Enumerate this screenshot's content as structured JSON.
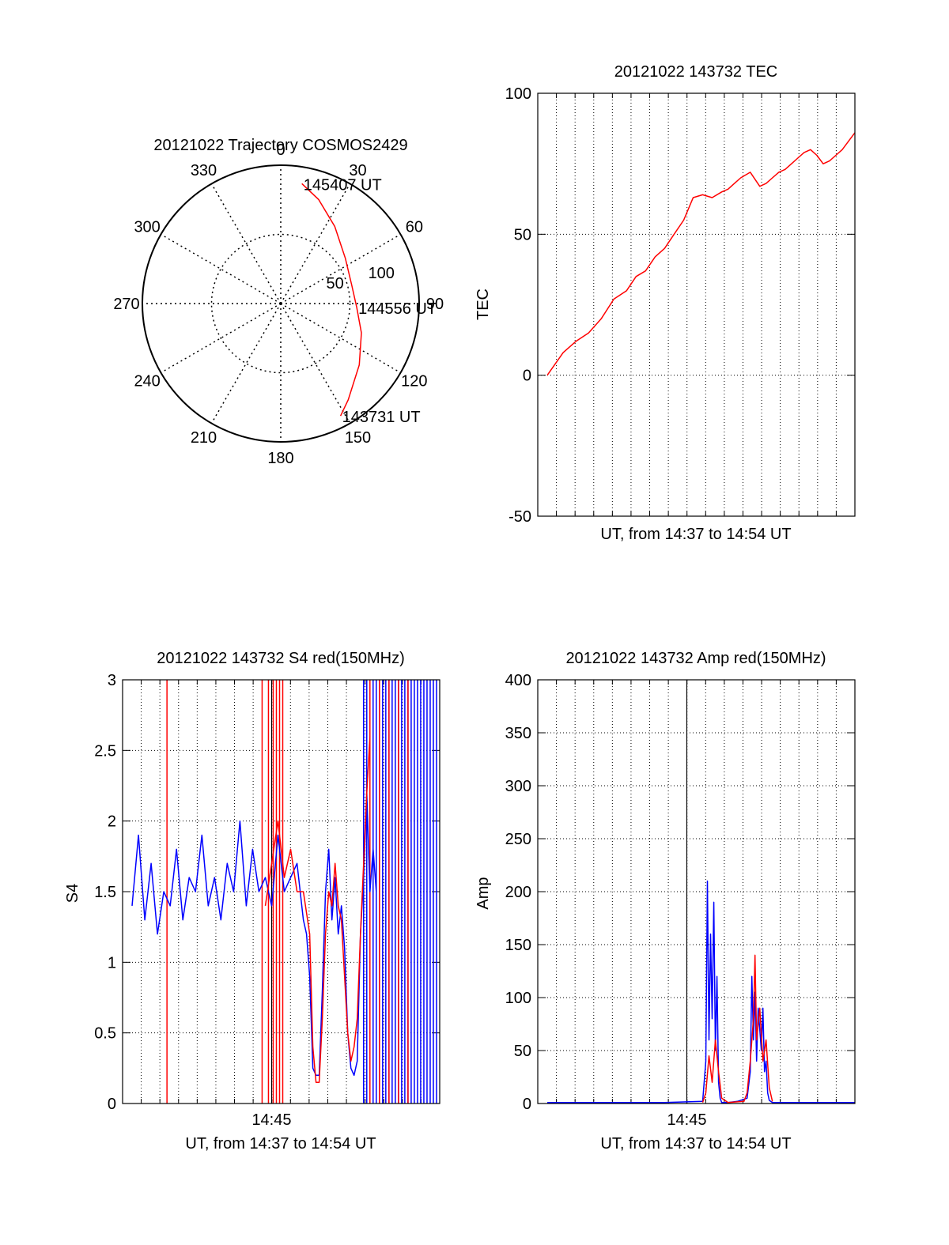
{
  "chart_data": [
    {
      "id": "polar",
      "type": "polar-trajectory",
      "title": "20121022 Trajectory COSMOS2429",
      "azimuth_labels": [
        "0",
        "30",
        "60",
        "90",
        "120",
        "150",
        "180",
        "210",
        "240",
        "270",
        "300",
        "330"
      ],
      "radius_labels": [
        "50",
        "100"
      ],
      "radius_max": 100,
      "track": {
        "color": "#ff0000",
        "points": [
          {
            "az": 10,
            "r": 88
          },
          {
            "az": 20,
            "r": 80
          },
          {
            "az": 35,
            "r": 68
          },
          {
            "az": 55,
            "r": 57
          },
          {
            "az": 75,
            "r": 53
          },
          {
            "az": 93,
            "r": 55
          },
          {
            "az": 110,
            "r": 62
          },
          {
            "az": 128,
            "r": 72
          },
          {
            "az": 145,
            "r": 85
          },
          {
            "az": 152,
            "r": 92
          }
        ]
      },
      "annotations": [
        {
          "text": "145407 UT",
          "az": 10,
          "r": 88
        },
        {
          "text": "144556 UT",
          "az": 93,
          "r": 55
        },
        {
          "text": "143731 UT",
          "az": 152,
          "r": 92
        }
      ]
    },
    {
      "id": "tec",
      "type": "line",
      "title": "20121022 143732 TEC",
      "xlabel": "UT, from 14:37 to 14:54 UT",
      "ylabel": "TEC",
      "xlim": [
        0,
        100
      ],
      "ylim": [
        -50,
        100
      ],
      "yticks": [
        "-50",
        "0",
        "50",
        "100"
      ],
      "grid": true,
      "series": [
        {
          "color": "#ff0000",
          "x": [
            3,
            8,
            12,
            16,
            20,
            24,
            28,
            31,
            34,
            37,
            40,
            43,
            46,
            49,
            52,
            55,
            58,
            60,
            62,
            64,
            67,
            70,
            72,
            74,
            76,
            78,
            80,
            82,
            84,
            86,
            88,
            90,
            92,
            94,
            96,
            98,
            100
          ],
          "y": [
            0,
            8,
            12,
            15,
            20,
            27,
            30,
            35,
            37,
            42,
            45,
            50,
            55,
            63,
            64,
            63,
            65,
            66,
            68,
            70,
            72,
            67,
            68,
            70,
            72,
            73,
            75,
            77,
            79,
            80,
            78,
            75,
            76,
            78,
            80,
            83,
            86
          ]
        }
      ]
    },
    {
      "id": "s4",
      "type": "line",
      "title": "20121022 143732 S4 red(150MHz)",
      "xlabel": "UT, from 14:37 to 14:54 UT",
      "ylabel": "S4",
      "xlim": [
        0,
        100
      ],
      "ylim": [
        0,
        3
      ],
      "yticks": [
        "0",
        "0.5",
        "1",
        "1.5",
        "2",
        "2.5",
        "3"
      ],
      "xticks": [
        {
          "label": "14:45",
          "x": 47
        }
      ],
      "grid": true,
      "series": [
        {
          "color": "#0000ff",
          "x": [
            3,
            5,
            7,
            9,
            11,
            13,
            15,
            17,
            19,
            21,
            23,
            25,
            27,
            29,
            31,
            33,
            35,
            37,
            39,
            41,
            43,
            45,
            47,
            49,
            51,
            53,
            55,
            57,
            58,
            59,
            60,
            61,
            62,
            63,
            64,
            65,
            66,
            67,
            68,
            69,
            70,
            71,
            72,
            73,
            74,
            75,
            76,
            77,
            78,
            79,
            80
          ],
          "y": [
            1.4,
            1.9,
            1.3,
            1.7,
            1.2,
            1.5,
            1.4,
            1.8,
            1.3,
            1.6,
            1.5,
            1.9,
            1.4,
            1.6,
            1.3,
            1.7,
            1.5,
            2.0,
            1.4,
            1.8,
            1.5,
            1.6,
            1.4,
            1.9,
            1.5,
            1.6,
            1.7,
            1.3,
            1.2,
            0.9,
            0.25,
            0.2,
            0.2,
            0.8,
            1.5,
            1.8,
            1.3,
            1.6,
            1.2,
            1.4,
            1.1,
            0.5,
            0.25,
            0.2,
            0.3,
            1.2,
            1.6,
            2.2,
            1.5,
            1.8,
            1.5
          ]
        },
        {
          "color": "#ff0000",
          "x": [
            45,
            47,
            49,
            51,
            53,
            55,
            57,
            59,
            60,
            61,
            62,
            63,
            64,
            65,
            66,
            67,
            68,
            69,
            70,
            71,
            72,
            73,
            74,
            75,
            76,
            77,
            78
          ],
          "y": [
            1.4,
            1.7,
            2.0,
            1.6,
            1.8,
            1.5,
            1.5,
            1.2,
            0.4,
            0.15,
            0.15,
            0.6,
            1.2,
            1.5,
            1.4,
            1.7,
            1.4,
            1.3,
            0.9,
            0.5,
            0.3,
            0.4,
            0.6,
            1.2,
            1.7,
            2.2,
            2.6
          ]
        }
      ],
      "spikes": [
        {
          "color": "#ff0000",
          "x": [
            14,
            44,
            46,
            47.5,
            48.5,
            49.5,
            50.5
          ]
        },
        {
          "color": "#0000ff",
          "x": [
            76,
            77,
            79,
            80,
            81,
            82,
            83,
            84,
            85,
            86,
            87,
            88,
            89,
            90,
            91,
            92,
            93,
            94,
            95,
            96,
            97,
            98,
            99
          ]
        },
        {
          "color": "#ff0000",
          "x": [
            78,
            81,
            84,
            87,
            90
          ]
        }
      ]
    },
    {
      "id": "amp",
      "type": "line",
      "title": "20121022 143732 Amp red(150MHz)",
      "xlabel": "UT, from 14:37 to 14:54 UT",
      "ylabel": "Amp",
      "xlim": [
        0,
        100
      ],
      "ylim": [
        0,
        400
      ],
      "yticks": [
        "0",
        "50",
        "100",
        "150",
        "200",
        "250",
        "300",
        "350",
        "400"
      ],
      "xticks": [
        {
          "label": "14:45",
          "x": 47
        }
      ],
      "grid": true,
      "series": [
        {
          "color": "#0000ff",
          "x": [
            3,
            20,
            40,
            52,
            53,
            53.5,
            54,
            54.5,
            55,
            55.5,
            56,
            56.5,
            57,
            57.5,
            58,
            60,
            63,
            66,
            67,
            67.5,
            68,
            68.5,
            69,
            69.5,
            70,
            70.5,
            71,
            71.5,
            72,
            72.5,
            73,
            74,
            80,
            90,
            100
          ],
          "y": [
            1,
            1,
            1,
            2,
            40,
            210,
            60,
            160,
            80,
            190,
            50,
            120,
            20,
            5,
            1,
            1,
            2,
            5,
            30,
            120,
            60,
            105,
            40,
            90,
            70,
            50,
            90,
            30,
            40,
            10,
            3,
            1,
            1,
            1,
            1
          ]
        },
        {
          "color": "#ff0000",
          "x": [
            52,
            53,
            54,
            55,
            56,
            57,
            58,
            60,
            65,
            66,
            67,
            68,
            68.5,
            69,
            70,
            71,
            72,
            73,
            74
          ],
          "y": [
            1,
            10,
            45,
            20,
            60,
            30,
            5,
            1,
            2,
            10,
            40,
            80,
            140,
            60,
            90,
            40,
            60,
            15,
            2
          ]
        }
      ]
    }
  ]
}
